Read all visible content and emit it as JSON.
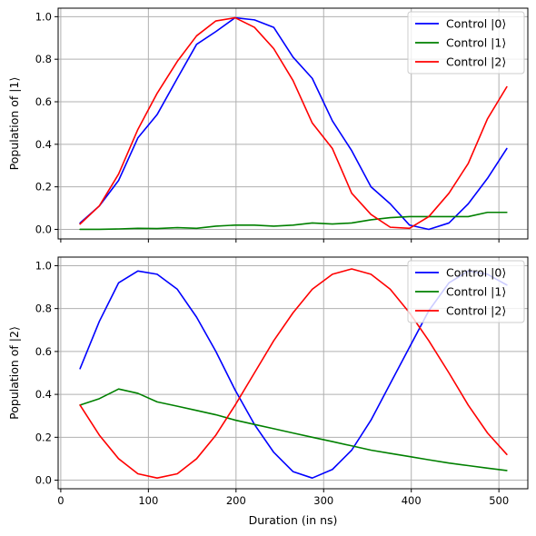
{
  "chart_data": [
    {
      "type": "line",
      "ylabel": "Population of |1⟩",
      "xlabel": "",
      "xlim": [
        -3,
        533
      ],
      "ylim": [
        -0.045,
        1.04
      ],
      "xticks": [
        0,
        100,
        200,
        300,
        400,
        500
      ],
      "show_x_tick_labels": false,
      "yticks": [
        0.0,
        0.2,
        0.4,
        0.6,
        0.8,
        1.0
      ],
      "ytick_labels": [
        "0.0",
        "0.2",
        "0.4",
        "0.6",
        "0.8",
        "1.0"
      ],
      "grid": true,
      "legend_position": "top-right",
      "x": [
        22,
        44,
        66,
        88,
        110,
        133,
        155,
        177,
        199,
        221,
        243,
        265,
        287,
        310,
        332,
        354,
        376,
        398,
        420,
        443,
        465,
        487,
        509
      ],
      "series": [
        {
          "name": "Control |0⟩",
          "color": "#0000ff",
          "values": [
            0.03,
            0.11,
            0.23,
            0.43,
            0.54,
            0.71,
            0.87,
            0.93,
            0.995,
            0.985,
            0.95,
            0.81,
            0.71,
            0.51,
            0.37,
            0.2,
            0.12,
            0.02,
            0.0,
            0.03,
            0.12,
            0.24,
            0.38
          ]
        },
        {
          "name": "Control |1⟩",
          "color": "#008000",
          "values": [
            0.0,
            0.0,
            0.002,
            0.005,
            0.004,
            0.008,
            0.005,
            0.015,
            0.02,
            0.02,
            0.015,
            0.02,
            0.03,
            0.025,
            0.03,
            0.045,
            0.055,
            0.06,
            0.06,
            0.06,
            0.06,
            0.08,
            0.08
          ]
        },
        {
          "name": "Control |2⟩",
          "color": "#ff0000",
          "values": [
            0.025,
            0.11,
            0.26,
            0.47,
            0.64,
            0.79,
            0.91,
            0.98,
            0.995,
            0.95,
            0.85,
            0.7,
            0.5,
            0.38,
            0.17,
            0.07,
            0.01,
            0.005,
            0.06,
            0.17,
            0.31,
            0.52,
            0.67
          ]
        }
      ]
    },
    {
      "type": "line",
      "ylabel": "Population of |2⟩",
      "xlabel": "Duration (in ns)",
      "xlim": [
        -3,
        533
      ],
      "ylim": [
        -0.04,
        1.04
      ],
      "xticks": [
        0,
        100,
        200,
        300,
        400,
        500
      ],
      "xtick_labels": [
        "0",
        "100",
        "200",
        "300",
        "400",
        "500"
      ],
      "show_x_tick_labels": true,
      "yticks": [
        0.0,
        0.2,
        0.4,
        0.6,
        0.8,
        1.0
      ],
      "ytick_labels": [
        "0.0",
        "0.2",
        "0.4",
        "0.6",
        "0.8",
        "1.0"
      ],
      "grid": true,
      "legend_position": "top-right",
      "x": [
        22,
        44,
        66,
        88,
        110,
        133,
        155,
        177,
        199,
        221,
        243,
        265,
        287,
        310,
        332,
        354,
        376,
        398,
        420,
        443,
        465,
        487,
        509
      ],
      "series": [
        {
          "name": "Control |0⟩",
          "color": "#0000ff",
          "values": [
            0.52,
            0.74,
            0.92,
            0.975,
            0.96,
            0.89,
            0.76,
            0.6,
            0.42,
            0.26,
            0.13,
            0.04,
            0.01,
            0.05,
            0.14,
            0.28,
            0.45,
            0.62,
            0.79,
            0.92,
            0.975,
            0.96,
            0.91
          ]
        },
        {
          "name": "Control |1⟩",
          "color": "#008000",
          "values": [
            0.35,
            0.38,
            0.425,
            0.405,
            0.365,
            0.345,
            0.325,
            0.305,
            0.28,
            0.26,
            0.24,
            0.22,
            0.2,
            0.18,
            0.16,
            0.14,
            0.125,
            0.11,
            0.095,
            0.08,
            0.068,
            0.056,
            0.045
          ]
        },
        {
          "name": "Control |2⟩",
          "color": "#ff0000",
          "values": [
            0.35,
            0.21,
            0.1,
            0.03,
            0.01,
            0.03,
            0.1,
            0.21,
            0.35,
            0.5,
            0.65,
            0.78,
            0.89,
            0.96,
            0.985,
            0.96,
            0.89,
            0.78,
            0.65,
            0.5,
            0.35,
            0.22,
            0.12
          ]
        }
      ]
    }
  ]
}
